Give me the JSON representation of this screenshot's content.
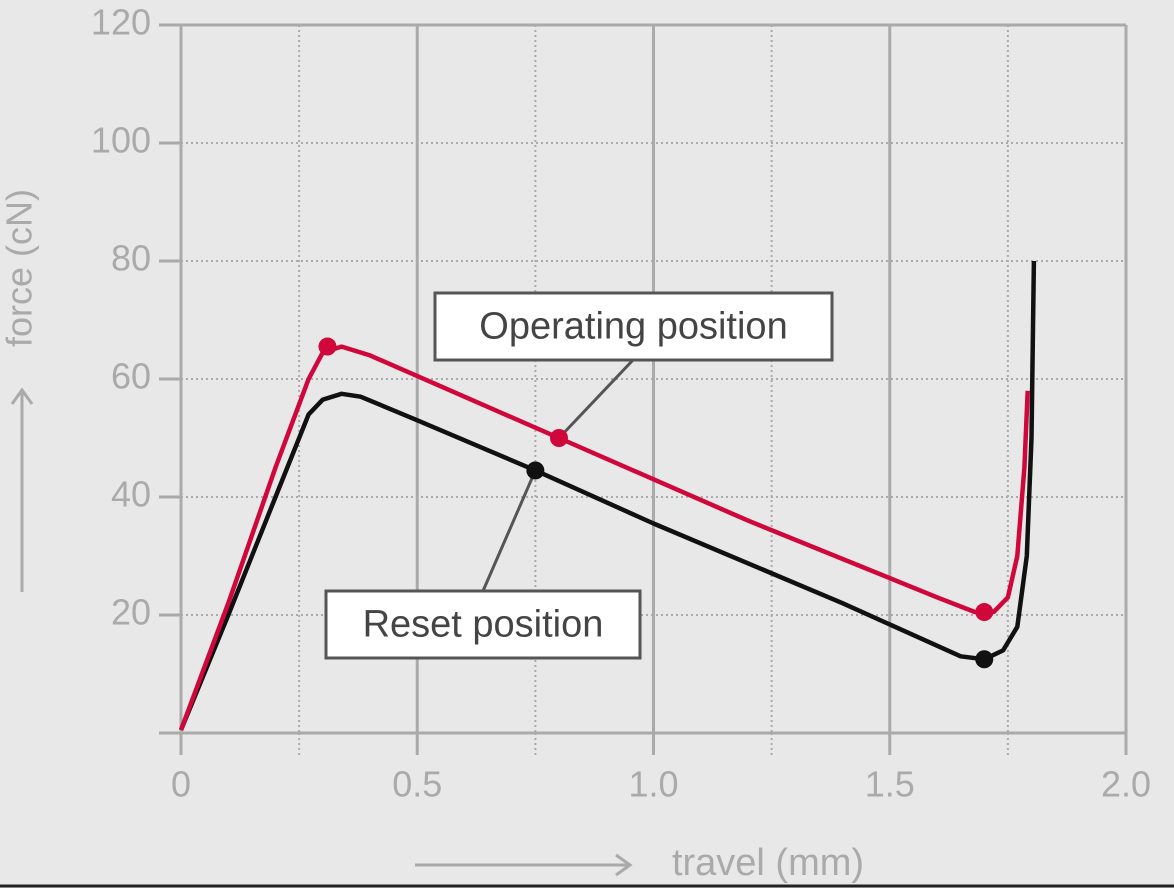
{
  "chart_data": {
    "type": "line",
    "xlabel": "travel (mm)",
    "ylabel": "force (cN)",
    "xlim": [
      0,
      2.0
    ],
    "ylim": [
      0,
      120
    ],
    "xticks": [
      0,
      0.5,
      {
        "value": 1.0,
        "label": "1.0"
      },
      1.5,
      {
        "value": 2.0,
        "label": "2.0"
      }
    ],
    "x_minor_ticks": [
      0.25,
      0.75,
      1.25,
      1.75
    ],
    "yticks": [
      20,
      40,
      60,
      80,
      100,
      120
    ],
    "grid": true,
    "series": [
      {
        "name": "Operating position",
        "color": "#d0073a",
        "x": [
          0,
          0.1,
          0.2,
          0.27,
          0.3,
          0.34,
          0.4,
          0.8,
          1.2,
          1.6,
          1.68,
          1.72,
          1.75,
          1.77,
          1.785,
          1.792
        ],
        "values": [
          0.5,
          22,
          45,
          60,
          64.5,
          65.5,
          64,
          50,
          36,
          23,
          20.5,
          20.5,
          23,
          30,
          45,
          58
        ],
        "markers": {
          "x": [
            0.31,
            0.8,
            1.7
          ],
          "values": [
            65.5,
            50,
            20.5
          ]
        }
      },
      {
        "name": "Reset position",
        "color": "#111111",
        "x": [
          0,
          0.1,
          0.2,
          0.27,
          0.3,
          0.34,
          0.38,
          0.5,
          0.75,
          1.0,
          1.4,
          1.65,
          1.7,
          1.74,
          1.77,
          1.79,
          1.8,
          1.805
        ],
        "values": [
          0.5,
          20,
          40,
          54,
          56.5,
          57.5,
          57,
          53,
          44.5,
          35.5,
          22,
          13,
          12.5,
          14,
          18,
          30,
          50,
          80
        ],
        "markers": {
          "x": [
            0.75,
            1.7
          ],
          "values": [
            44.5,
            12.5
          ]
        }
      }
    ]
  }
}
